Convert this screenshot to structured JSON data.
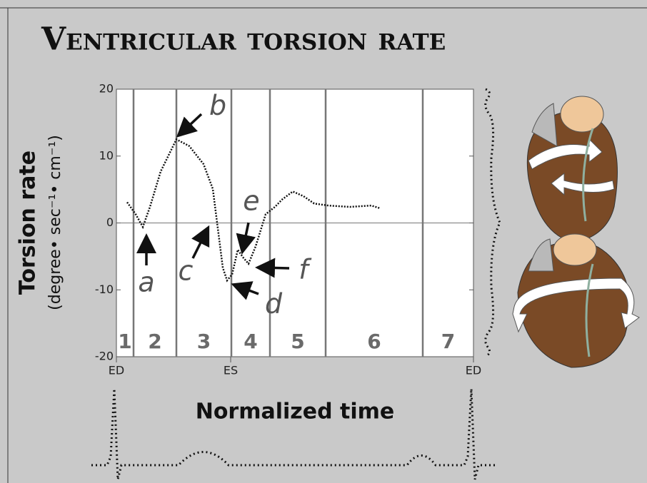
{
  "chart_data": {
    "type": "line",
    "title": "Ventricular torsion rate",
    "ylabel": "Torsion rate",
    "ylabel_units": "(degree• sec⁻¹• cm⁻¹)",
    "xlabel": "Normalized time",
    "xlim": [
      0,
      1
    ],
    "xticks": [
      {
        "value": 0,
        "label": "ED"
      },
      {
        "value": 0.32,
        "label": "ES"
      },
      {
        "value": 1,
        "label": "ED"
      }
    ],
    "ylim": [
      -20,
      20
    ],
    "yticks": [
      -20,
      -10,
      0,
      10,
      20
    ],
    "phase_boundaries": [
      0.048,
      0.168,
      0.322,
      0.43,
      0.586,
      0.858
    ],
    "phase_labels": [
      "1",
      "2",
      "3",
      "4",
      "5",
      "6",
      "7"
    ],
    "annotations": [
      "a",
      "b",
      "c",
      "d",
      "e",
      "f"
    ],
    "series": [
      {
        "color": "#111111",
        "x": [
          0.03,
          0.054,
          0.074,
          0.094,
          0.124,
          0.168,
          0.204,
          0.244,
          0.27,
          0.284,
          0.298,
          0.31,
          0.324,
          0.34,
          0.354,
          0.37,
          0.39,
          0.418,
          0.444,
          0.464,
          0.494,
          0.524,
          0.554,
          0.594,
          0.654,
          0.714,
          0.738
        ],
        "values": [
          3.1,
          1.3,
          -0.6,
          2.4,
          7.7,
          12.5,
          11.5,
          8.8,
          5.1,
          -0.8,
          -6.7,
          -8.6,
          -7.7,
          -4.0,
          -5.1,
          -6.1,
          -3.5,
          1.3,
          2.4,
          3.5,
          4.7,
          4.0,
          2.9,
          2.6,
          2.4,
          2.6,
          2.2
        ]
      }
    ]
  }
}
